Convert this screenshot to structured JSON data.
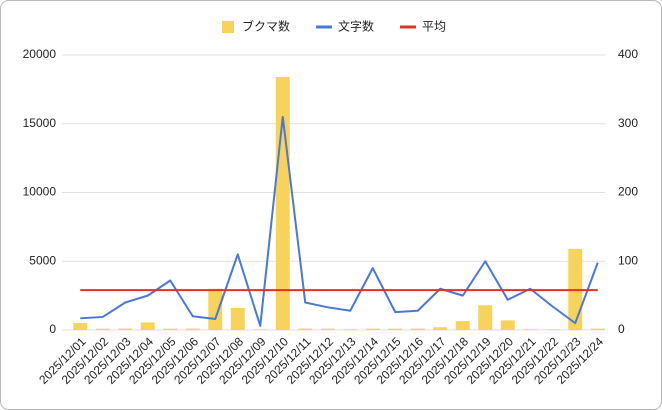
{
  "chart_data": {
    "type": "combo",
    "categories": [
      "2025/12/01",
      "2025/12/02",
      "2025/12/03",
      "2025/12/04",
      "2025/12/05",
      "2025/12/06",
      "2025/12/07",
      "2025/12/08",
      "2025/12/09",
      "2025/12/10",
      "2025/12/11",
      "2025/12/12",
      "2025/12/13",
      "2025/12/14",
      "2025/12/15",
      "2025/12/16",
      "2025/12/17",
      "2025/12/18",
      "2025/12/19",
      "2025/12/20",
      "2025/12/21",
      "2025/12/22",
      "2025/12/23",
      "2025/12/24"
    ],
    "series": [
      {
        "name": "ブクマ数",
        "type": "bar",
        "axis": "y2",
        "color": "#f7d35c",
        "values": [
          10,
          2,
          2,
          11,
          2,
          2,
          60,
          32,
          1,
          368,
          2,
          2,
          1,
          2,
          2,
          2,
          4,
          13,
          36,
          14,
          1,
          1,
          118,
          2
        ]
      },
      {
        "name": "文字数",
        "type": "line",
        "color": "#4a78d6",
        "values": [
          850,
          950,
          2000,
          2500,
          3600,
          1000,
          800,
          5500,
          300,
          15500,
          2000,
          1650,
          1400,
          4500,
          1300,
          1400,
          3000,
          2500,
          5000,
          2200,
          3000,
          1700,
          500,
          4900
        ]
      },
      {
        "name": "平均",
        "type": "line",
        "color": "#e0321f",
        "values": [
          2900,
          2900,
          2900,
          2900,
          2900,
          2900,
          2900,
          2900,
          2900,
          2900,
          2900,
          2900,
          2900,
          2900,
          2900,
          2900,
          2900,
          2900,
          2900,
          2900,
          2900,
          2900,
          2900,
          2900
        ]
      }
    ],
    "ylim": [
      0,
      20000
    ],
    "yticks": [
      0,
      5000,
      10000,
      15000,
      20000
    ],
    "y2lim": [
      0,
      400
    ],
    "y2ticks": [
      0,
      100,
      200,
      300,
      400
    ],
    "grid": true,
    "legend": "top"
  }
}
